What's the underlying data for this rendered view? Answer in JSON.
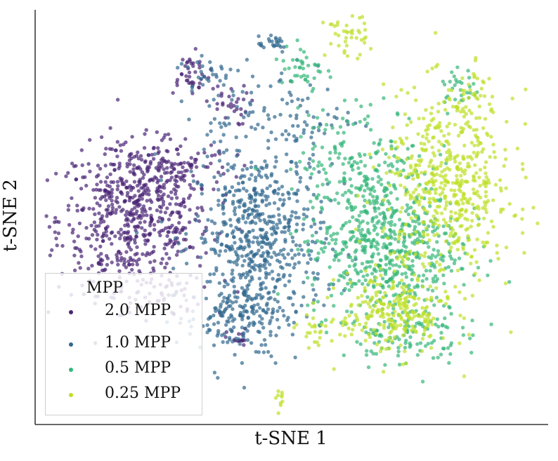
{
  "chart_data": {
    "type": "scatter",
    "title": "",
    "xlabel": "t-SNE 1",
    "ylabel": "t-SNE 2",
    "xticks": [],
    "yticks": [],
    "grid": false,
    "legend": {
      "title": "MPP",
      "placement": "lower-left"
    },
    "series": [
      {
        "name": "2.0 MPP",
        "color": "#482475",
        "clusters": [
          {
            "cx": -28,
            "cy": 2,
            "sx": 7,
            "sy": 7,
            "n": 600
          },
          {
            "cx": -22,
            "cy": 12,
            "sx": 6,
            "sy": 3,
            "n": 120
          },
          {
            "cx": -18,
            "cy": 30,
            "sx": 2,
            "sy": 2,
            "n": 40
          },
          {
            "cx": -11,
            "cy": 24,
            "sx": 2,
            "sy": 2,
            "n": 30
          },
          {
            "cx": -24,
            "cy": -13,
            "sx": 4,
            "sy": 2,
            "n": 40
          },
          {
            "cx": -9,
            "cy": -21,
            "sx": 1,
            "sy": 1,
            "n": 15
          }
        ]
      },
      {
        "name": "1.0 MPP",
        "color": "#31688e",
        "clusters": [
          {
            "cx": -5,
            "cy": -2,
            "sx": 6,
            "sy": 9,
            "n": 620
          },
          {
            "cx": -10,
            "cy": -17,
            "sx": 4,
            "sy": 3,
            "n": 130
          },
          {
            "cx": -1,
            "cy": 22,
            "sx": 7,
            "sy": 5,
            "n": 100
          },
          {
            "cx": -3,
            "cy": 36,
            "sx": 2,
            "sy": 1,
            "n": 25
          },
          {
            "cx": -14,
            "cy": 30,
            "sx": 3,
            "sy": 2,
            "n": 30
          }
        ]
      },
      {
        "name": "0.5 MPP",
        "color": "#35b779",
        "clusters": [
          {
            "cx": 18,
            "cy": -3,
            "sx": 7,
            "sy": 7,
            "n": 600
          },
          {
            "cx": 14,
            "cy": 14,
            "sx": 6,
            "sy": 5,
            "n": 150
          },
          {
            "cx": 22,
            "cy": -20,
            "sx": 5,
            "sy": 3,
            "n": 110
          },
          {
            "cx": 3,
            "cy": 31,
            "sx": 2,
            "sy": 3,
            "n": 40
          },
          {
            "cx": 32,
            "cy": 27,
            "sx": 2,
            "sy": 2,
            "n": 30
          }
        ]
      },
      {
        "name": "0.25 MPP",
        "color": "#bddf26",
        "clusters": [
          {
            "cx": 30,
            "cy": 8,
            "sx": 6,
            "sy": 9,
            "n": 550
          },
          {
            "cx": 20,
            "cy": -16,
            "sx": 5,
            "sy": 4,
            "n": 240
          },
          {
            "cx": 11,
            "cy": 37,
            "sx": 2,
            "sy": 2,
            "n": 40
          },
          {
            "cx": 34,
            "cy": 25,
            "sx": 2,
            "sy": 3,
            "n": 30
          },
          {
            "cx": 6,
            "cy": -19,
            "sx": 2,
            "sy": 2,
            "n": 25
          },
          {
            "cx": -1,
            "cy": -33,
            "sx": 0.5,
            "sy": 1,
            "n": 10
          }
        ]
      }
    ],
    "xlim": [
      -45,
      47
    ],
    "ylim": [
      -36,
      40
    ]
  }
}
